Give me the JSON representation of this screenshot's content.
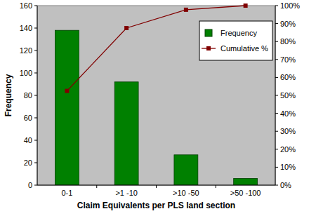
{
  "chart_data": {
    "type": "bar",
    "x_label": "Claim Equivalents per PLS land section",
    "y_label": "Frequency",
    "categories": [
      "0-1",
      ">1 -10",
      ">10 -50",
      ">50 -100"
    ],
    "series": [
      {
        "name": "Frequency",
        "type": "bar",
        "color": "#008000",
        "values": [
          138,
          92,
          27,
          6
        ]
      },
      {
        "name": "Cumulative %",
        "type": "line",
        "axis": "y2",
        "color": "#800000",
        "marker": "square",
        "line_style": "solid",
        "values": [
          52.5,
          87.5,
          97.7,
          100
        ]
      }
    ],
    "ylim": [
      0,
      160
    ],
    "yticks": [
      0,
      20,
      40,
      60,
      80,
      100,
      120,
      140,
      160
    ],
    "y2lim": [
      0,
      100
    ],
    "y2ticks": [
      {
        "value": 0,
        "label": "0%"
      },
      {
        "value": 10,
        "label": "10%"
      },
      {
        "value": 20,
        "label": "20%"
      },
      {
        "value": 30,
        "label": "30%"
      },
      {
        "value": 40,
        "label": "40%"
      },
      {
        "value": 50,
        "label": "50%"
      },
      {
        "value": 60,
        "label": "60%"
      },
      {
        "value": 70,
        "label": "70%"
      },
      {
        "value": 80,
        "label": "80%"
      },
      {
        "value": 90,
        "label": "90%"
      },
      {
        "value": 100,
        "label": "100%"
      }
    ],
    "grid": false,
    "legend": "top-right"
  }
}
